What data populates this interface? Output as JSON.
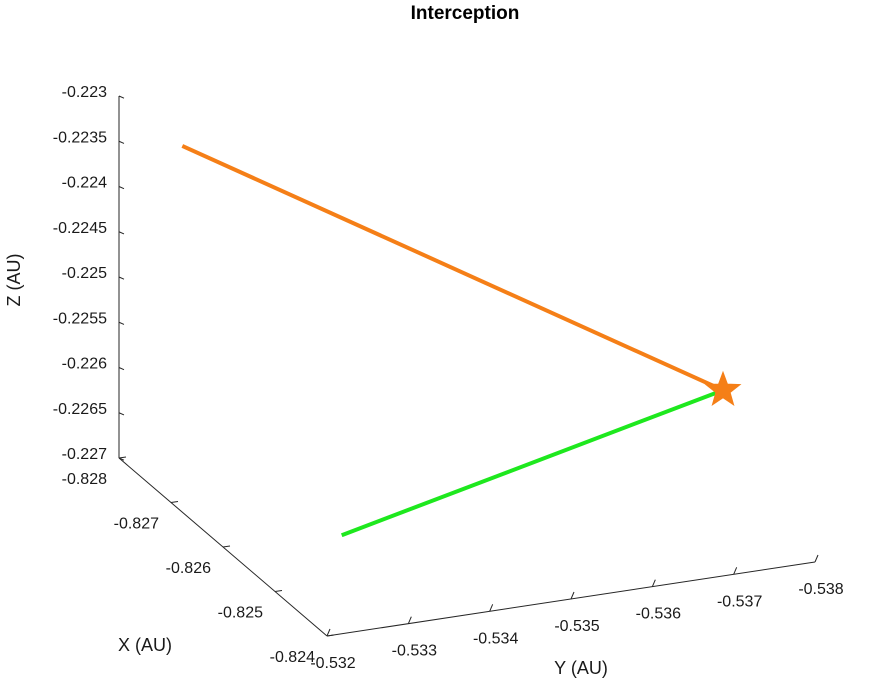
{
  "chart_data": {
    "type": "line",
    "projection": "3d",
    "title": "Interception",
    "xlabel": "X (AU)",
    "ylabel": "Y (AU)",
    "zlabel": "Z (AU)",
    "xlim": [
      -0.828,
      -0.824
    ],
    "ylim": [
      -0.532,
      -0.538
    ],
    "zlim": [
      -0.227,
      -0.223
    ],
    "x_ticks": [
      "-0.828",
      "-0.827",
      "-0.826",
      "-0.825",
      "-0.824"
    ],
    "y_ticks": [
      "-0.532",
      "-0.533",
      "-0.534",
      "-0.535",
      "-0.536",
      "-0.537",
      "-0.538"
    ],
    "z_ticks": [
      "-0.223",
      "-0.2235",
      "-0.224",
      "-0.2245",
      "-0.225",
      "-0.2255",
      "-0.226",
      "-0.2265",
      "-0.227"
    ],
    "grid": false,
    "series": [
      {
        "color": "#f57f17",
        "points": [
          {
            "x": -0.826,
            "y": -0.5315,
            "z": -0.2225
          },
          {
            "x": -0.8253,
            "y": -0.5377,
            "z": -0.2257
          }
        ]
      },
      {
        "color": "#1ee81e",
        "points": [
          {
            "x": -0.8245,
            "y": -0.5325,
            "z": -0.2262
          },
          {
            "x": -0.8253,
            "y": -0.5377,
            "z": -0.2257
          }
        ]
      }
    ],
    "markers": [
      {
        "shape": "star",
        "color": "#f57f17",
        "x": -0.8253,
        "y": -0.5377,
        "z": -0.2257
      }
    ]
  }
}
